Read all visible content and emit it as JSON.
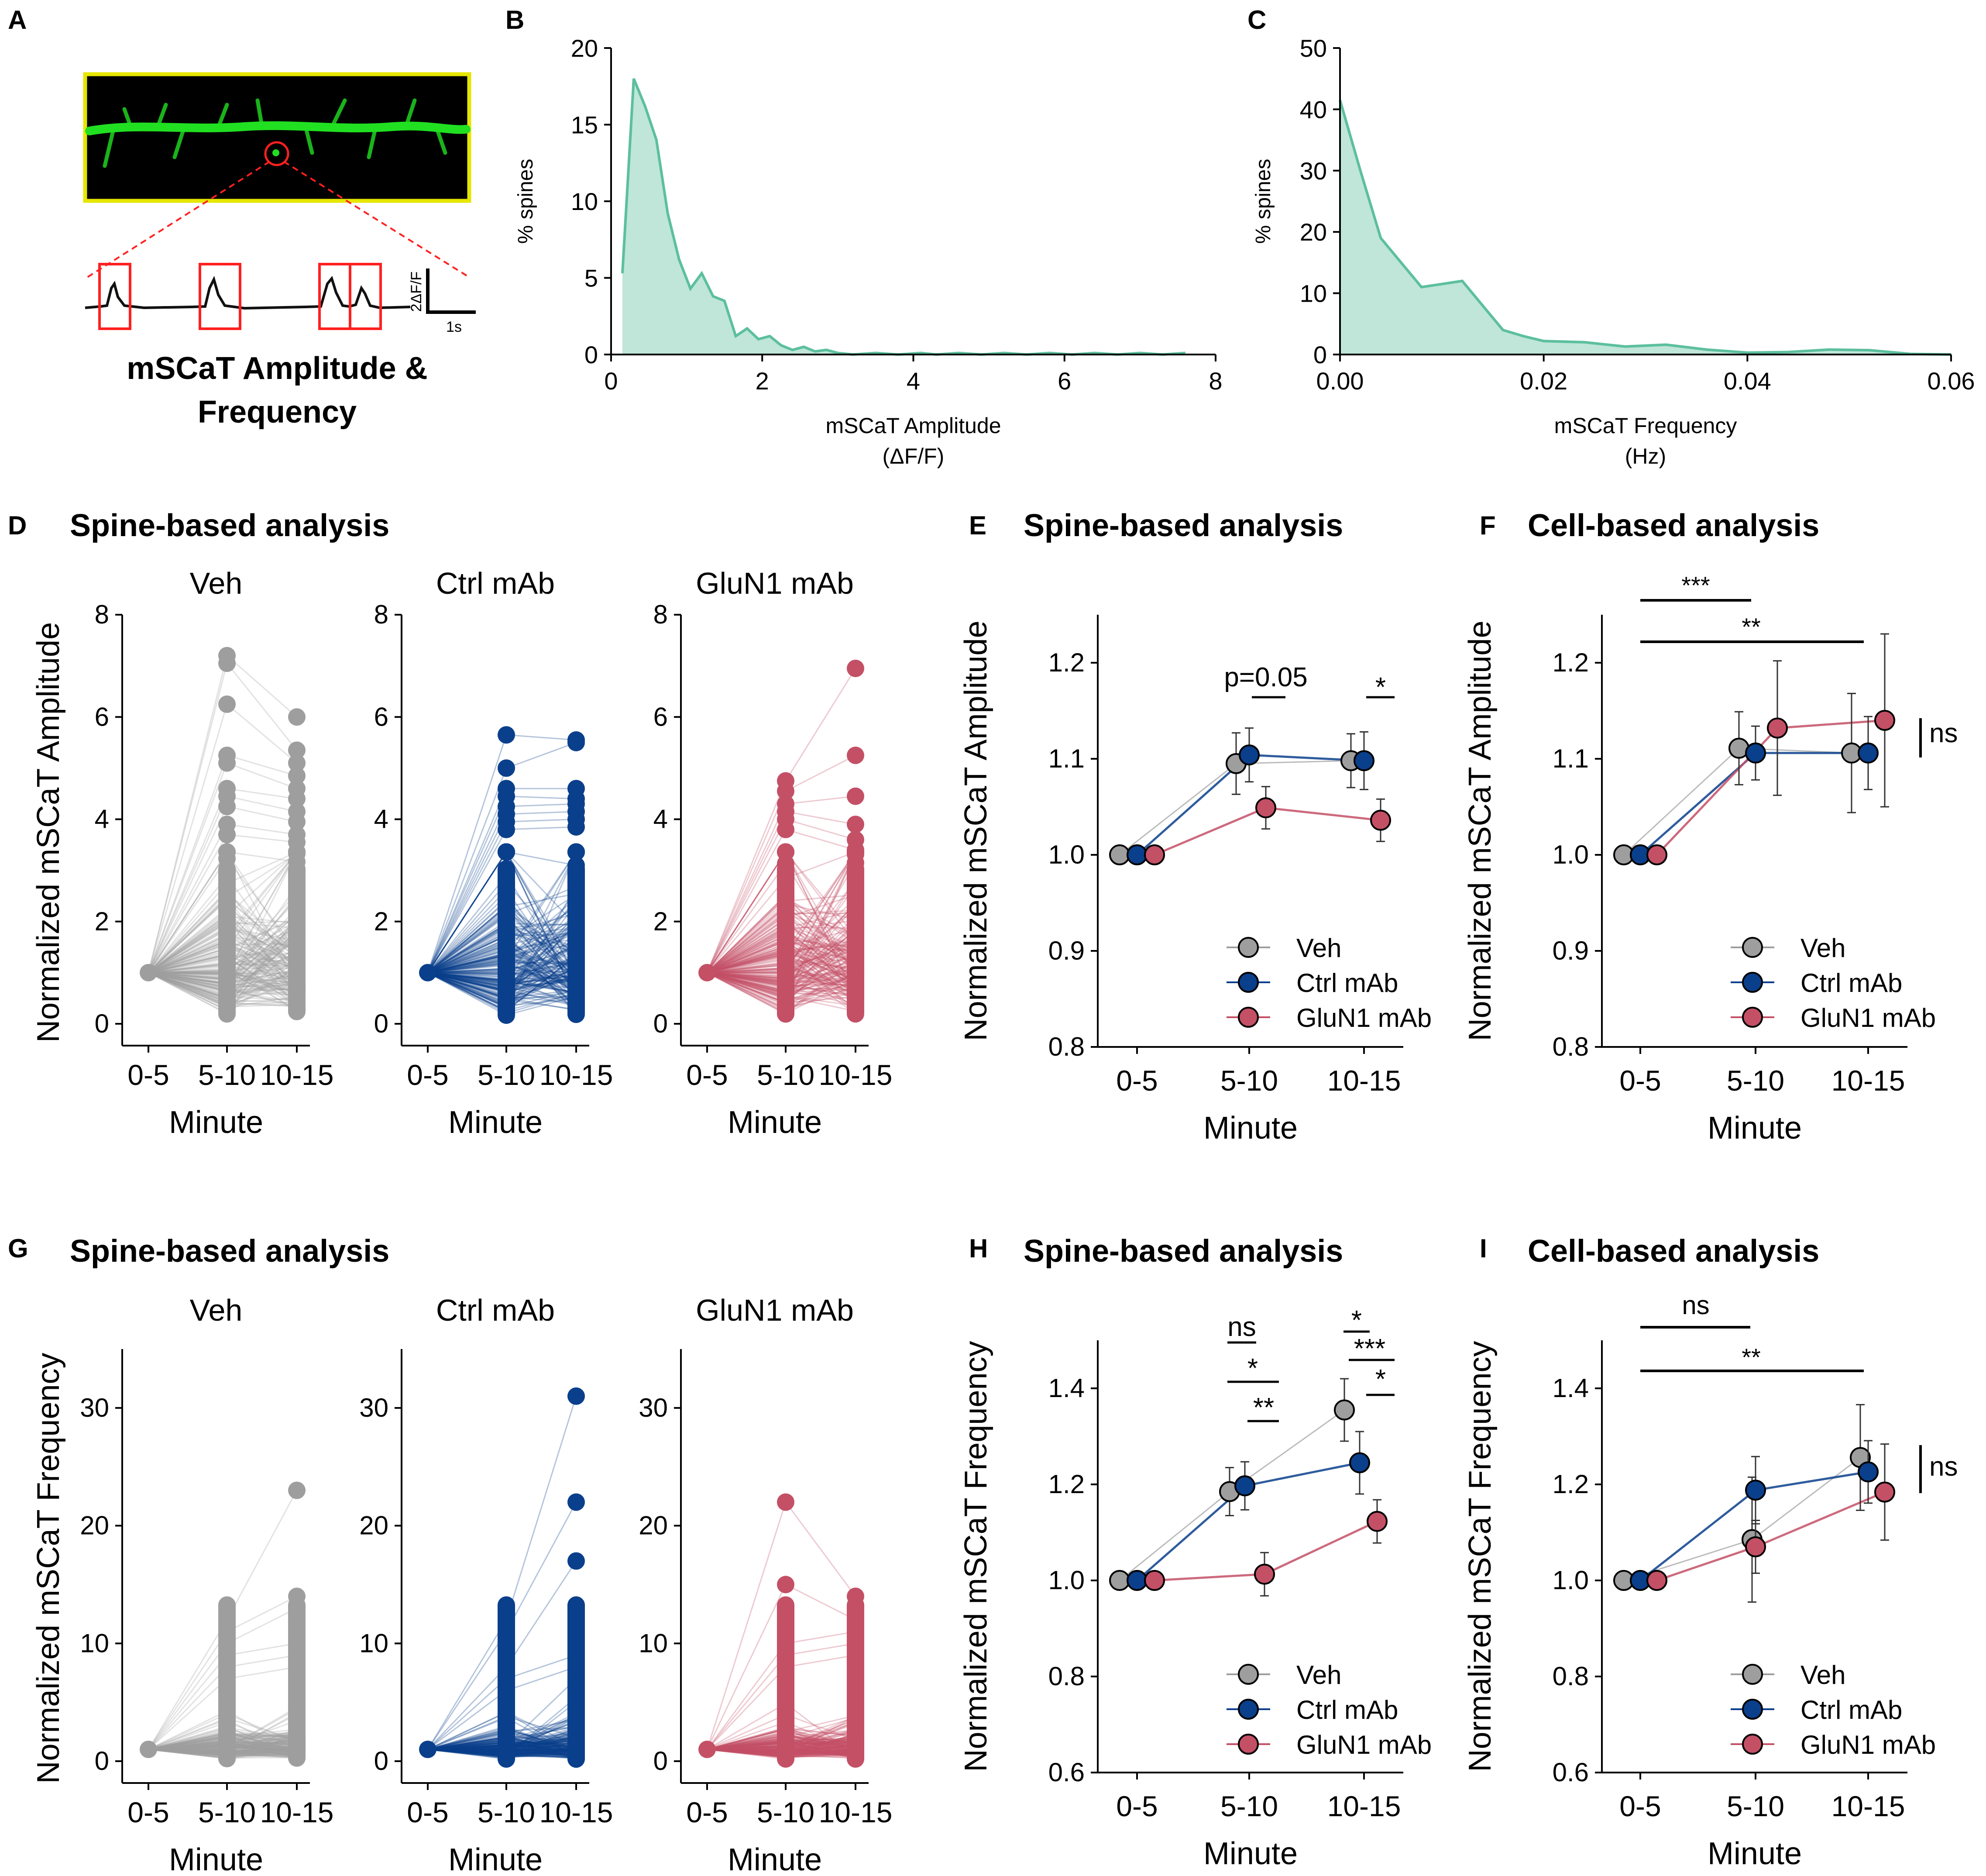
{
  "colors": {
    "veh": "#9e9e9e",
    "ctrl": "#0a3f8c",
    "glun1": "#c45066",
    "teal": "#5cbf9e",
    "teal_fill": "#bfe6d8",
    "dendrite": "#21e021",
    "frame": "#e6e600",
    "roi": "#ff2020"
  },
  "panel_letters": {
    "a": "A",
    "b": "B",
    "c": "C",
    "d": "D",
    "e": "E",
    "f": "F",
    "g": "G",
    "h": "H",
    "i": "I"
  },
  "panel_a": {
    "title_line1": "mSCaT Amplitude &",
    "title_line2": "Frequency",
    "scale_y": "2ΔF/F",
    "scale_x": "1s",
    "icons": [
      "dendrite-image",
      "trace-icon"
    ]
  },
  "headings": {
    "d": "Spine-based analysis",
    "e": "Spine-based analysis",
    "f": "Cell-based analysis",
    "g": "Spine-based analysis",
    "h": "Spine-based analysis",
    "i": "Cell-based analysis"
  },
  "groups": [
    "Veh",
    "Ctrl mAb",
    "GluN1 mAb"
  ],
  "minute_label": "Minute",
  "ann": {
    "p005": "p=0.05",
    "s1": "*",
    "s2": "**",
    "s3": "***",
    "ns": "ns"
  },
  "chart_data": [
    {
      "id": "B",
      "type": "area",
      "xlabel_line1": "mSCaT Amplitude",
      "xlabel_line2": "(ΔF/F)",
      "ylabel": "% spines",
      "xlim": [
        0,
        8
      ],
      "ylim": [
        0,
        20
      ],
      "xticks": [
        0,
        2,
        4,
        6,
        8
      ],
      "yticks": [
        0,
        5,
        10,
        15,
        20
      ],
      "x": [
        0.15,
        0.3,
        0.45,
        0.6,
        0.75,
        0.9,
        1.05,
        1.2,
        1.35,
        1.5,
        1.65,
        1.8,
        1.95,
        2.1,
        2.25,
        2.4,
        2.55,
        2.7,
        2.85,
        3.0,
        3.2,
        3.5,
        3.8,
        4.1,
        4.3,
        4.6,
        4.9,
        5.2,
        5.5,
        5.8,
        6.1,
        6.4,
        6.7,
        7.0,
        7.3,
        7.6
      ],
      "y": [
        5.3,
        18.0,
        16.2,
        14.0,
        9.2,
        6.2,
        4.3,
        5.3,
        3.8,
        3.5,
        1.2,
        1.7,
        1.0,
        1.2,
        0.6,
        0.3,
        0.5,
        0.2,
        0.3,
        0.1,
        0.0,
        0.1,
        0.0,
        0.1,
        0.0,
        0.1,
        0.0,
        0.1,
        0.0,
        0.1,
        0.0,
        0.1,
        0.0,
        0.1,
        0.0,
        0.1
      ]
    },
    {
      "id": "C",
      "type": "area",
      "xlabel_line1": "mSCaT Frequency",
      "xlabel_line2": "(Hz)",
      "ylabel": "% spines",
      "xlim": [
        0,
        0.06
      ],
      "ylim": [
        0,
        50
      ],
      "xticks": [
        0.0,
        0.02,
        0.04,
        0.06
      ],
      "xtick_labels": [
        "0.00",
        "0.02",
        "0.04",
        "0.06"
      ],
      "yticks": [
        0,
        10,
        20,
        30,
        40,
        50
      ],
      "x": [
        0.0,
        0.002,
        0.004,
        0.006,
        0.008,
        0.01,
        0.012,
        0.014,
        0.016,
        0.018,
        0.02,
        0.024,
        0.028,
        0.032,
        0.036,
        0.04,
        0.044,
        0.048,
        0.052,
        0.056,
        0.06
      ],
      "y": [
        41.5,
        30.0,
        19.0,
        15.0,
        11.0,
        11.5,
        12.0,
        8.0,
        4.0,
        3.0,
        2.2,
        2.0,
        1.3,
        1.6,
        0.8,
        0.3,
        0.4,
        0.8,
        0.7,
        0.1,
        0.0
      ]
    },
    {
      "id": "D",
      "type": "scatter",
      "ylabel": "Normalized mSCaT Amplitude",
      "ylim": [
        0,
        8
      ],
      "yticks": [
        0,
        2,
        4,
        6,
        8
      ],
      "categories": [
        "0-5",
        "5-10",
        "10-15"
      ],
      "panels": [
        {
          "name": "Veh",
          "color": "#9e9e9e",
          "max_t2": 7.2,
          "max_t3": 6.0,
          "highs_t2": [
            7.2,
            7.05,
            6.25,
            5.25,
            5.1,
            4.6,
            4.45,
            4.25,
            3.9,
            3.7
          ],
          "highs_t3": [
            6.0,
            5.35,
            5.1,
            4.85,
            4.6,
            4.4,
            4.15,
            3.95,
            3.7,
            3.55
          ]
        },
        {
          "name": "Ctrl mAb",
          "color": "#0a3f8c",
          "max_t2": 5.65,
          "max_t3": 5.55,
          "highs_t2": [
            5.65,
            5.0,
            4.6,
            4.45,
            4.25,
            4.1,
            3.95,
            3.8
          ],
          "highs_t3": [
            5.55,
            5.5,
            4.6,
            4.4,
            4.3,
            4.15,
            4.0,
            3.85
          ]
        },
        {
          "name": "GluN1 mAb",
          "color": "#c45066",
          "max_t2": 4.75,
          "max_t3": 6.95,
          "highs_t2": [
            4.75,
            4.55,
            4.3,
            4.15,
            4.0,
            3.8
          ],
          "highs_t3": [
            6.95,
            5.25,
            4.45,
            3.9,
            3.6,
            3.4
          ]
        }
      ]
    },
    {
      "id": "E",
      "type": "line",
      "ylabel": "Normalized mSCaT Amplitude",
      "xlabel": "Minute",
      "ylim": [
        0.8,
        1.25
      ],
      "yticks": [
        0.8,
        0.9,
        1.0,
        1.1,
        1.2
      ],
      "categories": [
        "0-5",
        "5-10",
        "10-15"
      ],
      "series": [
        {
          "name": "Veh",
          "values": [
            1.0,
            1.095,
            1.098
          ],
          "err": [
            0,
            0.032,
            0.028
          ]
        },
        {
          "name": "Ctrl mAb",
          "values": [
            1.0,
            1.104,
            1.098
          ],
          "err": [
            0,
            0.028,
            0.03
          ]
        },
        {
          "name": "GluN1 mAb",
          "values": [
            1.0,
            1.049,
            1.036
          ],
          "err": [
            0,
            0.022,
            0.022
          ]
        }
      ]
    },
    {
      "id": "F",
      "type": "line",
      "ylabel": "Normalized mSCaT Amplitude",
      "xlabel": "Minute",
      "ylim": [
        0.8,
        1.25
      ],
      "yticks": [
        0.8,
        0.9,
        1.0,
        1.1,
        1.2
      ],
      "categories": [
        "0-5",
        "5-10",
        "10-15"
      ],
      "series": [
        {
          "name": "Veh",
          "values": [
            1.0,
            1.111,
            1.106
          ],
          "err": [
            0,
            0.038,
            0.062
          ]
        },
        {
          "name": "Ctrl mAb",
          "values": [
            1.0,
            1.106,
            1.106
          ],
          "err": [
            0,
            0.028,
            0.038
          ]
        },
        {
          "name": "GluN1 mAb",
          "values": [
            1.0,
            1.132,
            1.14
          ],
          "err": [
            0,
            0.07,
            0.09
          ]
        }
      ]
    },
    {
      "id": "G",
      "type": "scatter",
      "ylabel": "Normalized mSCaT Frequency",
      "ylim": [
        0,
        35
      ],
      "yticks": [
        0,
        10,
        20,
        30
      ],
      "categories": [
        "0-5",
        "5-10",
        "10-15"
      ],
      "panels": [
        {
          "name": "Veh",
          "color": "#9e9e9e",
          "max_t2": 12,
          "max_t3": 23,
          "highs_t2": [
            12,
            11,
            10,
            9,
            8,
            7
          ],
          "highs_t3": [
            23,
            14,
            13,
            10,
            9,
            8
          ]
        },
        {
          "name": "Ctrl mAb",
          "color": "#0a3f8c",
          "max_t2": 12,
          "max_t3": 31,
          "highs_t2": [
            12,
            11,
            8,
            7,
            6
          ],
          "highs_t3": [
            31,
            22,
            17,
            9,
            8,
            7
          ]
        },
        {
          "name": "GluN1 mAb",
          "color": "#c45066",
          "max_t2": 22,
          "max_t3": 14,
          "highs_t2": [
            22,
            15,
            10,
            9,
            8
          ],
          "highs_t3": [
            14,
            12,
            11,
            10,
            9
          ]
        }
      ]
    },
    {
      "id": "H",
      "type": "line",
      "ylabel": "Normalized mSCaT Frequency",
      "xlabel": "Minute",
      "ylim": [
        0.6,
        1.5
      ],
      "yticks": [
        0.6,
        0.8,
        1.0,
        1.2,
        1.4
      ],
      "categories": [
        "0-5",
        "5-10",
        "10-15"
      ],
      "series": [
        {
          "name": "Veh",
          "values": [
            1.0,
            1.185,
            1.355
          ],
          "err": [
            0,
            0.05,
            0.065
          ]
        },
        {
          "name": "Ctrl mAb",
          "values": [
            1.0,
            1.197,
            1.245
          ],
          "err": [
            0,
            0.05,
            0.065
          ]
        },
        {
          "name": "GluN1 mAb",
          "values": [
            1.0,
            1.013,
            1.123
          ],
          "err": [
            0,
            0.045,
            0.045
          ]
        }
      ]
    },
    {
      "id": "I",
      "type": "line",
      "ylabel": "Normalized mSCaT Frequency",
      "xlabel": "Minute",
      "ylim": [
        0.6,
        1.5
      ],
      "yticks": [
        0.6,
        0.8,
        1.0,
        1.2,
        1.4
      ],
      "categories": [
        "0-5",
        "5-10",
        "10-15"
      ],
      "series": [
        {
          "name": "Veh",
          "values": [
            1.0,
            1.085,
            1.256
          ],
          "err": [
            0,
            0.13,
            0.11
          ]
        },
        {
          "name": "Ctrl mAb",
          "values": [
            1.0,
            1.188,
            1.226
          ],
          "err": [
            0,
            0.07,
            0.065
          ]
        },
        {
          "name": "GluN1 mAb",
          "values": [
            1.0,
            1.07,
            1.184
          ],
          "err": [
            0,
            0.055,
            0.1
          ]
        }
      ]
    }
  ]
}
